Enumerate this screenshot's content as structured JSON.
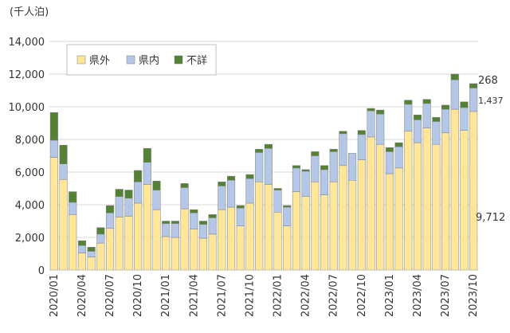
{
  "chart_data": {
    "type": "bar",
    "stacked": true,
    "unit_label": "(千人泊)",
    "ylim": [
      0,
      14000
    ],
    "yticks": [
      "0",
      "2,000",
      "4,000",
      "6,000",
      "8,000",
      "10,000",
      "12,000",
      "14,000"
    ],
    "grid": "horizontal",
    "legend_position": "top-left",
    "categories": [
      "2020/01",
      "2020/02",
      "2020/03",
      "2020/04",
      "2020/05",
      "2020/06",
      "2020/07",
      "2020/08",
      "2020/09",
      "2020/10",
      "2020/11",
      "2020/12",
      "2021/01",
      "2021/02",
      "2021/03",
      "2021/04",
      "2021/05",
      "2021/06",
      "2021/07",
      "2021/08",
      "2021/09",
      "2021/10",
      "2021/11",
      "2021/12",
      "2022/01",
      "2022/02",
      "2022/03",
      "2022/04",
      "2022/05",
      "2022/06",
      "2022/07",
      "2022/08",
      "2022/09",
      "2022/10",
      "2022/11",
      "2022/12",
      "2023/01",
      "2023/02",
      "2023/03",
      "2023/04",
      "2023/05",
      "2023/06",
      "2023/07",
      "2023/08",
      "2023/09",
      "2023/10"
    ],
    "x_tick_labels": [
      "2020/01",
      "2020/04",
      "2020/07",
      "2020/10",
      "2021/01",
      "2021/04",
      "2021/07",
      "2021/10",
      "2022/01",
      "2022/04",
      "2022/07",
      "2022/10",
      "2023/01",
      "2023/04",
      "2023/07",
      "2023/10"
    ],
    "series": [
      {
        "name": "県外",
        "color": "#FFE699",
        "values": [
          6900,
          5550,
          3400,
          1050,
          800,
          1650,
          2550,
          3250,
          3300,
          4100,
          5250,
          3700,
          2050,
          2000,
          3750,
          2500,
          1950,
          2200,
          3700,
          3850,
          2700,
          4100,
          5400,
          5250,
          3550,
          2700,
          4800,
          4500,
          5400,
          4600,
          5400,
          6400,
          5500,
          6750,
          8150,
          7700,
          5900,
          6250,
          8500,
          7800,
          8700,
          7700,
          8400,
          9850,
          8550,
          9712
        ]
      },
      {
        "name": "県内",
        "color": "#B4C7E7",
        "values": [
          1050,
          950,
          750,
          450,
          350,
          550,
          950,
          1250,
          1100,
          1300,
          1350,
          1200,
          800,
          850,
          1300,
          1000,
          850,
          1000,
          1450,
          1650,
          1100,
          1500,
          1800,
          2200,
          1350,
          1150,
          1450,
          1550,
          1600,
          1550,
          1850,
          1950,
          1650,
          1550,
          1600,
          1850,
          1350,
          1300,
          1650,
          1400,
          1500,
          1400,
          1450,
          1800,
          1400,
          1437
        ]
      },
      {
        "name": "不詳",
        "color": "#548235",
        "values": [
          1700,
          1150,
          650,
          300,
          250,
          400,
          450,
          450,
          500,
          700,
          850,
          550,
          150,
          150,
          250,
          200,
          200,
          200,
          250,
          250,
          150,
          250,
          200,
          250,
          100,
          100,
          150,
          100,
          250,
          250,
          150,
          150,
          0,
          250,
          150,
          250,
          250,
          250,
          250,
          300,
          250,
          250,
          250,
          350,
          350,
          268
        ]
      }
    ],
    "annotations": [
      "268",
      "1,437",
      "9,712"
    ]
  }
}
